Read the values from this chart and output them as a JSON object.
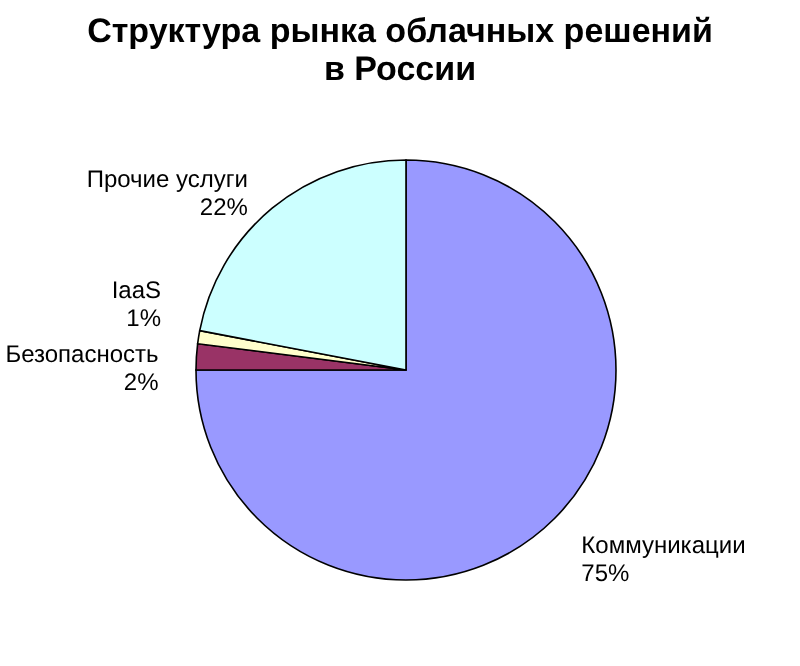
{
  "chart_data": {
    "type": "pie",
    "title": "Структура рынка облачных решений в России",
    "categories": [
      "Коммуникации",
      "Безопасность",
      "IaaS",
      "Прочие услуги"
    ],
    "values": [
      75,
      2,
      1,
      22
    ],
    "value_labels": [
      "75%",
      "2%",
      "1%",
      "22%"
    ],
    "colors": [
      "#9999ff",
      "#993366",
      "#ffffcc",
      "#ccffff"
    ]
  }
}
